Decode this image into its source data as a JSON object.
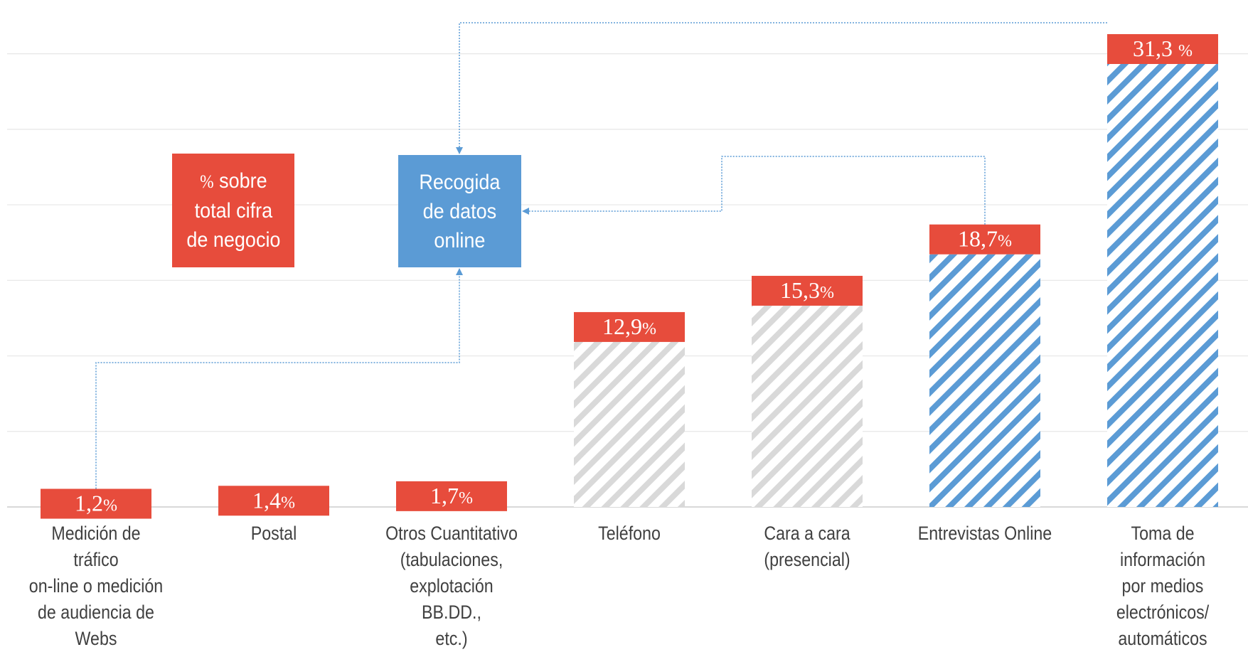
{
  "chart_data": {
    "type": "bar",
    "categories": [
      "Medición de tráfico\non-line o medición\nde audiencia de\nWebs",
      "Postal",
      "Otros Cuantitativo\n(tabulaciones,\nexplotación BB.DD.,\netc.)",
      "Teléfono",
      "Cara a cara\n(presencial)",
      "Entrevistas Online",
      "Toma de información\npor medios\nelectrónicos/\nautomáticos"
    ],
    "values": [
      1.2,
      1.4,
      1.7,
      12.9,
      15.3,
      18.7,
      31.3
    ],
    "value_labels": [
      "1,2",
      "1,4",
      "1,7",
      "12,9",
      "15,3",
      "18,7",
      "31,3 "
    ],
    "percent_sign": "%",
    "highlight": [
      true,
      false,
      false,
      false,
      false,
      true,
      true
    ],
    "ylim": [
      0,
      33
    ],
    "grid": true,
    "colors": {
      "online_hatch": "#5b9bd5",
      "offline_hatch": "#d9d9d9",
      "label_box": "#e74c3c",
      "callout_box": "#5b9bd5",
      "connector": "#5b9bd5",
      "gridline": "#e6e6e6",
      "axis": "#d9d9d9"
    }
  },
  "legend_box": {
    "symbol": "%",
    "text": " sobre\ntotal cifra\nde negocio"
  },
  "callout": {
    "text": "Recogida\nde datos\nonline"
  }
}
